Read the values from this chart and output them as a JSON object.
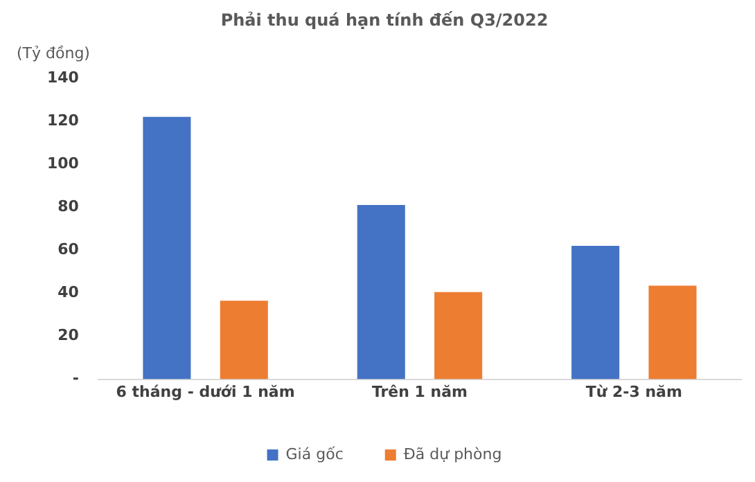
{
  "chart_data": {
    "type": "bar",
    "title": "Phải thu quá hạn tính đến Q3/2022",
    "ylabel": "(Tỷ đồng)",
    "categories": [
      "6 tháng - dưới 1 năm",
      "Trên 1 năm",
      "Từ 2-3 năm"
    ],
    "series": [
      {
        "name": "Giá gốc",
        "color": "#4472c4",
        "values": [
          122,
          81,
          62
        ]
      },
      {
        "name": "Đã dự phòng",
        "color": "#ed7d31",
        "values": [
          36.5,
          40.5,
          43.5
        ]
      }
    ],
    "ylim": [
      0,
      140
    ],
    "yticks": [
      {
        "value": 0,
        "label": "-"
      },
      20,
      40,
      60,
      80,
      100,
      120,
      140
    ],
    "grid": false,
    "legend": "bottom"
  }
}
